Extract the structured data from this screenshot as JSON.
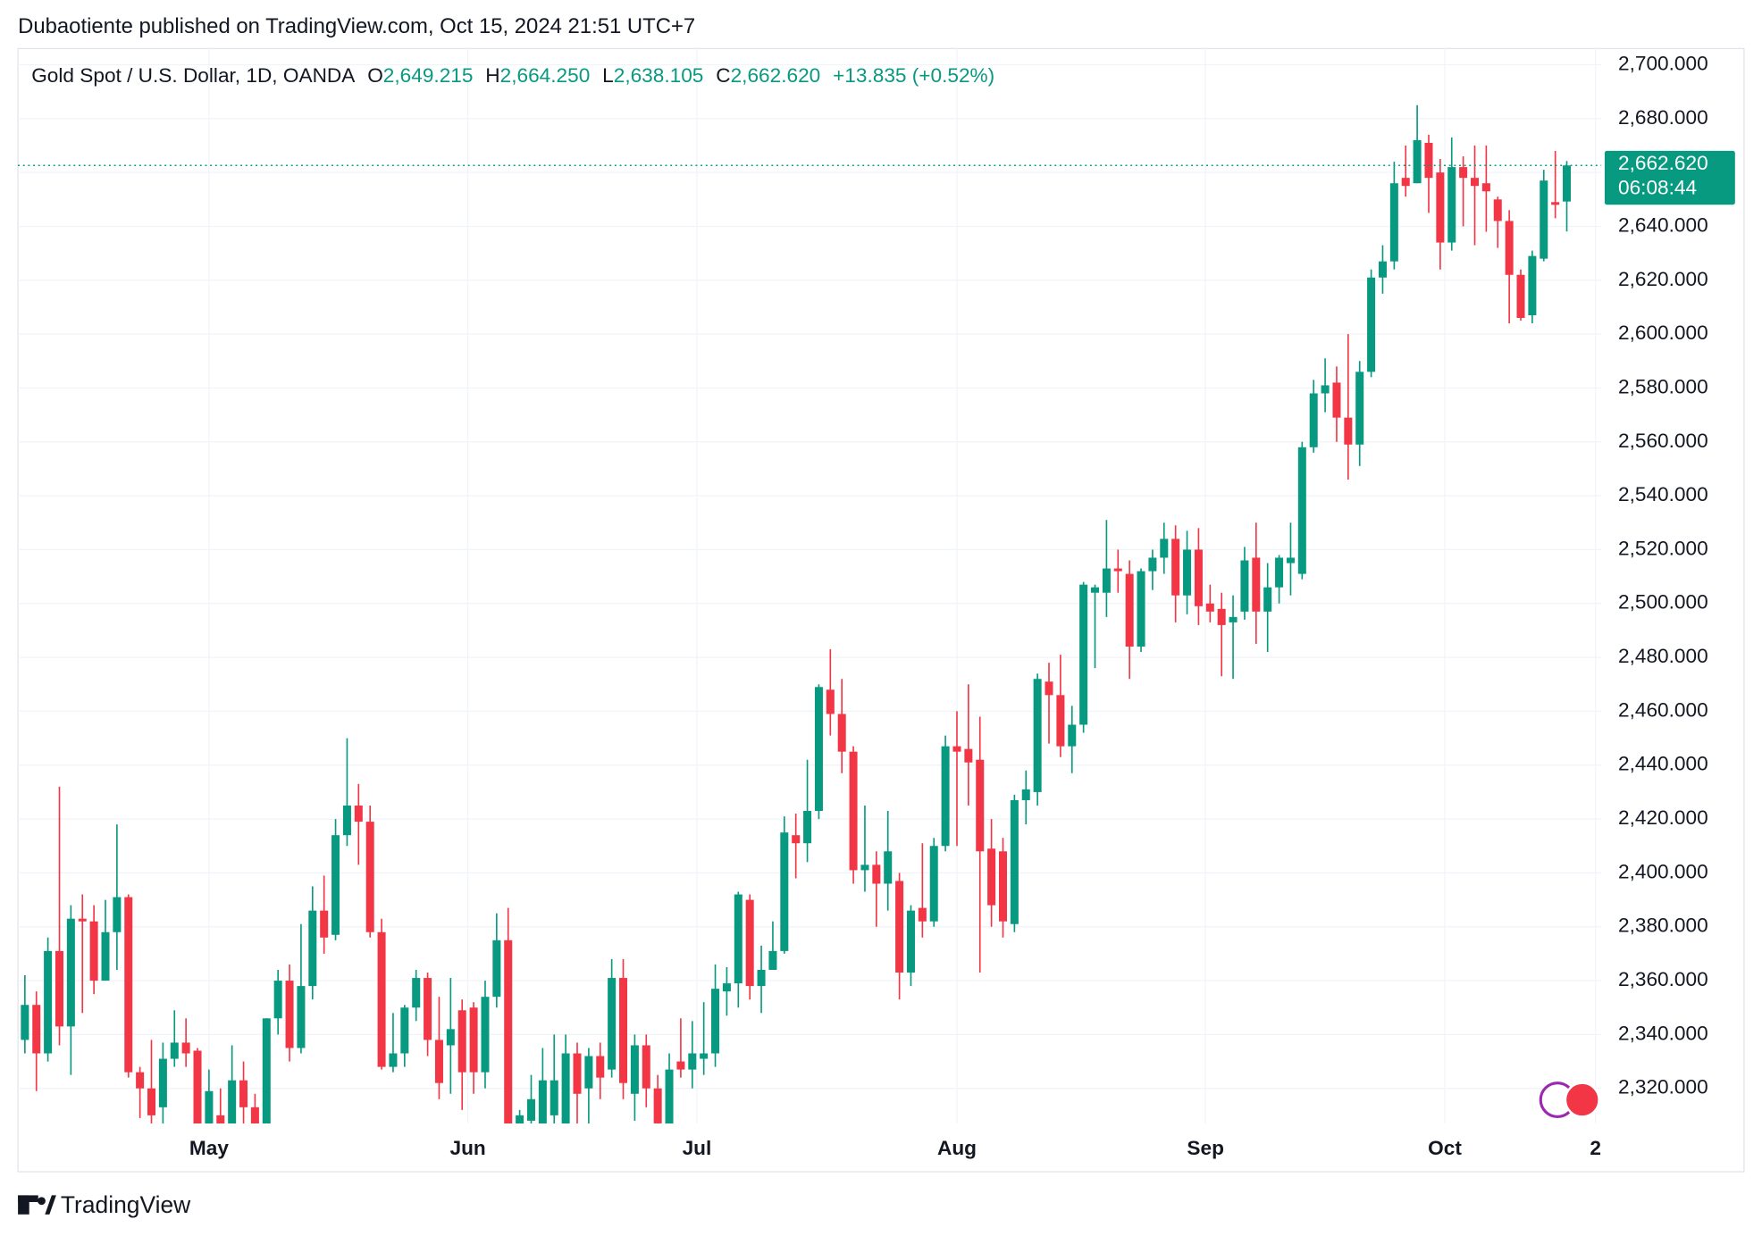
{
  "header": {
    "publisher": "Dubaotiente published on TradingView.com, Oct 15, 2024 21:51 UTC+7"
  },
  "footer": {
    "brand": "TradingView"
  },
  "chart_data": {
    "type": "candlestick",
    "legend": {
      "symbol": "Gold Spot / U.S. Dollar, 1D, OANDA",
      "open_key": "O",
      "open": "2,649.215",
      "high_key": "H",
      "high": "2,664.250",
      "low_key": "L",
      "low": "2,638.105",
      "close_key": "C",
      "close": "2,662.620",
      "change": "+13.835 (+0.52%)"
    },
    "last_price": {
      "value": 2662.62,
      "label": "2,662.620"
    },
    "countdown": "06:08:44",
    "up_color": "#089981",
    "down_color": "#f23645",
    "grid": true,
    "xlim": [
      -0.6,
      137
    ],
    "xticks": [
      {
        "value": 16,
        "label": "May"
      },
      {
        "value": 38.5,
        "label": "Jun"
      },
      {
        "value": 58.4,
        "label": "Jul"
      },
      {
        "value": 81,
        "label": "Aug"
      },
      {
        "value": 102.6,
        "label": "Sep"
      },
      {
        "value": 123.4,
        "label": "Oct"
      },
      {
        "value": 136.5,
        "label": "2"
      }
    ],
    "ylim": [
      2307,
      2706
    ],
    "yticks": [
      {
        "value": 2320,
        "label": "2,320.000"
      },
      {
        "value": 2340,
        "label": "2,340.000"
      },
      {
        "value": 2360,
        "label": "2,360.000"
      },
      {
        "value": 2380,
        "label": "2,380.000"
      },
      {
        "value": 2400,
        "label": "2,400.000"
      },
      {
        "value": 2420,
        "label": "2,420.000"
      },
      {
        "value": 2440,
        "label": "2,440.000"
      },
      {
        "value": 2460,
        "label": "2,460.000"
      },
      {
        "value": 2480,
        "label": "2,480.000"
      },
      {
        "value": 2500,
        "label": "2,500.000"
      },
      {
        "value": 2520,
        "label": "2,520.000"
      },
      {
        "value": 2540,
        "label": "2,540.000"
      },
      {
        "value": 2560,
        "label": "2,560.000"
      },
      {
        "value": 2580,
        "label": "2,580.000"
      },
      {
        "value": 2600,
        "label": "2,600.000"
      },
      {
        "value": 2620,
        "label": "2,620.000"
      },
      {
        "value": 2640,
        "label": "2,640.000"
      },
      {
        "value": 2660,
        "label": "2,660.000"
      },
      {
        "value": 2680,
        "label": "2,680.000"
      },
      {
        "value": 2700,
        "label": "2,700.000"
      }
    ],
    "open": [
      2338,
      2351,
      2333,
      2371,
      2343,
      2383,
      2382,
      2360,
      2378,
      2391,
      2326,
      2320,
      2313,
      2331,
      2337,
      2334,
      2305,
      2310,
      2303,
      2323,
      2313,
      2305,
      2346,
      2360,
      2335,
      2358,
      2386,
      2377,
      2414,
      2425,
      2419,
      2378,
      2328,
      2333,
      2350,
      2361,
      2338,
      2336,
      2349,
      2350,
      2326,
      2354,
      2375,
      2294,
      2308,
      2303,
      2310,
      2305,
      2333,
      2320,
      2332,
      2327,
      2361,
      2318,
      2336,
      2320,
      2305,
      2330,
      2327,
      2331,
      2333,
      2356,
      2359,
      2390,
      2358,
      2364,
      2371,
      2414,
      2411,
      2423,
      2468,
      2459,
      2445,
      2401,
      2403,
      2396,
      2397,
      2363,
      2387,
      2382,
      2410,
      2447,
      2446,
      2442,
      2409,
      2408,
      2381,
      2427,
      2430,
      2471,
      2466,
      2447,
      2455,
      2504,
      2504,
      2513,
      2511,
      2484,
      2512,
      2517,
      2524,
      2503,
      2520,
      2500,
      2498,
      2493,
      2497,
      2517,
      2497,
      2506,
      2515,
      2511,
      2558,
      2578,
      2582,
      2569,
      2559,
      2586,
      2621,
      2627,
      2658,
      2656,
      2671,
      2660,
      2634,
      2662,
      2658,
      2656,
      2650,
      2642,
      2622,
      2607,
      2628,
      2649,
      2649.215
    ],
    "high": [
      2362,
      2356,
      2376,
      2432,
      2388,
      2392,
      2388,
      2390,
      2418,
      2392,
      2328,
      2338,
      2337,
      2349,
      2346,
      2335,
      2327,
      2320,
      2336,
      2330,
      2318,
      2346,
      2364,
      2366,
      2381,
      2395,
      2399,
      2420,
      2450,
      2433,
      2425,
      2383,
      2348,
      2351,
      2364,
      2363,
      2354,
      2361,
      2353,
      2352,
      2360,
      2385,
      2387,
      2312,
      2325,
      2335,
      2340,
      2340,
      2337,
      2335,
      2337,
      2368,
      2368,
      2340,
      2340,
      2325,
      2333,
      2346,
      2345,
      2352,
      2366,
      2365,
      2393,
      2392,
      2373,
      2382,
      2421,
      2422,
      2442,
      2470,
      2483,
      2472,
      2447,
      2425,
      2408,
      2423,
      2400,
      2388,
      2411,
      2413,
      2451,
      2460,
      2470,
      2458,
      2420,
      2413,
      2429,
      2438,
      2474,
      2478,
      2481,
      2462,
      2508,
      2507,
      2531,
      2520,
      2516,
      2513,
      2520,
      2530,
      2529,
      2527,
      2528,
      2507,
      2504,
      2503,
      2521,
      2530,
      2515,
      2518,
      2530,
      2560,
      2583,
      2591,
      2588,
      2600,
      2590,
      2624,
      2633,
      2664,
      2670,
      2685,
      2674,
      2665,
      2673,
      2666,
      2670,
      2670,
      2651,
      2646,
      2624,
      2631,
      2661,
      2668,
      2664.25
    ],
    "low": [
      2333,
      2319,
      2330,
      2336,
      2325,
      2348,
      2355,
      2360,
      2364,
      2324,
      2309,
      2300,
      2303,
      2328,
      2328,
      2298,
      2290,
      2295,
      2295,
      2305,
      2295,
      2300,
      2340,
      2330,
      2333,
      2353,
      2370,
      2375,
      2410,
      2403,
      2376,
      2327,
      2326,
      2328,
      2345,
      2332,
      2316,
      2318,
      2312,
      2318,
      2320,
      2350,
      2287,
      2287,
      2300,
      2300,
      2303,
      2302,
      2305,
      2306,
      2316,
      2324,
      2316,
      2308,
      2313,
      2302,
      2300,
      2324,
      2320,
      2325,
      2328,
      2347,
      2350,
      2353,
      2348,
      2366,
      2370,
      2398,
      2404,
      2420,
      2451,
      2437,
      2396,
      2393,
      2380,
      2386,
      2353,
      2358,
      2376,
      2380,
      2408,
      2410,
      2425,
      2363,
      2380,
      2376,
      2378,
      2418,
      2425,
      2448,
      2443,
      2437,
      2452,
      2476,
      2495,
      2504,
      2472,
      2482,
      2505,
      2511,
      2493,
      2496,
      2492,
      2493,
      2473,
      2472,
      2494,
      2485,
      2482,
      2500,
      2503,
      2509,
      2556,
      2571,
      2560,
      2546,
      2551,
      2584,
      2615,
      2624,
      2651,
      2656,
      2645,
      2624,
      2631,
      2640,
      2633,
      2638,
      2632,
      2604,
      2605,
      2604,
      2627,
      2643,
      2638.105
    ],
    "close": [
      2351,
      2333,
      2371,
      2343,
      2383,
      2382,
      2360,
      2378,
      2391,
      2326,
      2320,
      2310,
      2331,
      2337,
      2333,
      2305,
      2319,
      2303,
      2323,
      2313,
      2303,
      2346,
      2360,
      2335,
      2358,
      2386,
      2376,
      2414,
      2425,
      2419,
      2378,
      2328,
      2333,
      2350,
      2361,
      2338,
      2322,
      2342,
      2326,
      2326,
      2354,
      2375,
      2294,
      2310,
      2316,
      2323,
      2323,
      2333,
      2318,
      2332,
      2324,
      2361,
      2322,
      2336,
      2320,
      2307,
      2327,
      2327,
      2333,
      2333,
      2357,
      2359,
      2392,
      2358,
      2364,
      2371,
      2415,
      2411,
      2423,
      2469,
      2459,
      2445,
      2401,
      2403,
      2396,
      2408,
      2363,
      2386,
      2382,
      2410,
      2447,
      2445,
      2441,
      2408,
      2388,
      2382,
      2427,
      2431,
      2472,
      2466,
      2447,
      2455,
      2507,
      2506,
      2513,
      2512,
      2484,
      2512,
      2517,
      2524,
      2503,
      2520,
      2499,
      2497,
      2492,
      2495,
      2516,
      2497,
      2506,
      2517,
      2517,
      2558,
      2578,
      2581,
      2569,
      2559,
      2586,
      2621,
      2627,
      2656,
      2655,
      2672,
      2658,
      2634,
      2662,
      2658,
      2655,
      2653,
      2642,
      2622,
      2606,
      2629,
      2657,
      2648,
      2662.62
    ]
  }
}
